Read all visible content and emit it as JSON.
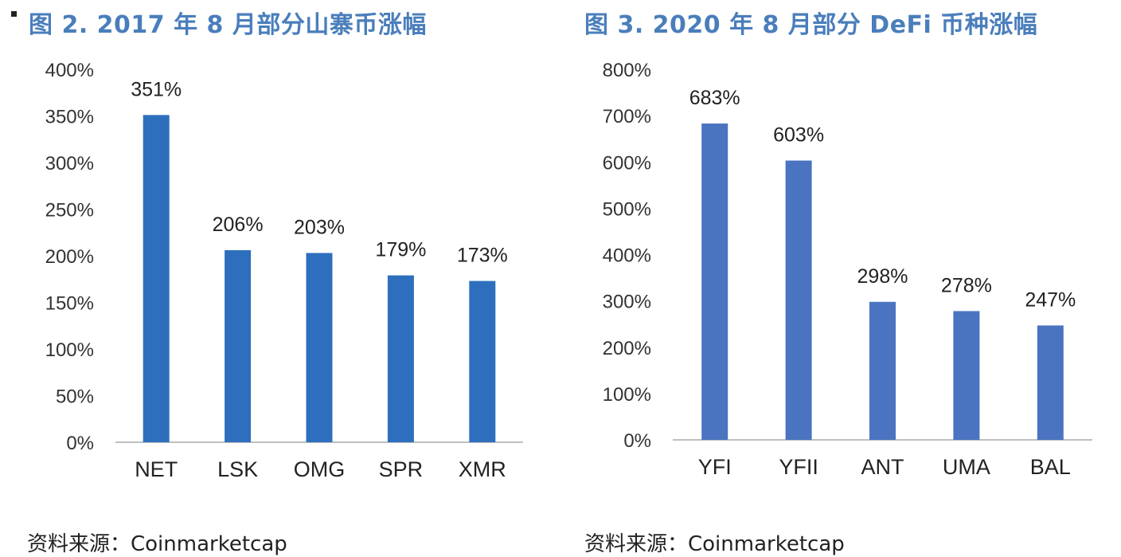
{
  "chart_data": [
    {
      "type": "bar",
      "title": "图 2.   2017 年 8 月部分山寨币涨幅",
      "categories": [
        "NET",
        "LSK",
        "OMG",
        "SPR",
        "XMR"
      ],
      "values": [
        351,
        206,
        203,
        179,
        173
      ],
      "data_labels": [
        "351%",
        "206%",
        "203%",
        "179%",
        "173%"
      ],
      "ylim": [
        0,
        400
      ],
      "yticks": [
        "0%",
        "50%",
        "100%",
        "150%",
        "200%",
        "250%",
        "300%",
        "350%",
        "400%"
      ],
      "xlabel": "",
      "ylabel": "",
      "grid": false,
      "bar_color": "#2e6fbd",
      "source": "资料来源：Coinmarketcap"
    },
    {
      "type": "bar",
      "title": "图 3. 2020 年 8 月部分 DeFi 币种涨幅",
      "categories": [
        "YFI",
        "YFII",
        "ANT",
        "UMA",
        "BAL"
      ],
      "values": [
        683,
        603,
        298,
        278,
        247
      ],
      "data_labels": [
        "683%",
        "603%",
        "298%",
        "278%",
        "247%"
      ],
      "ylim": [
        0,
        800
      ],
      "yticks": [
        "0%",
        "100%",
        "200%",
        "300%",
        "400%",
        "500%",
        "600%",
        "700%",
        "800%"
      ],
      "xlabel": "",
      "ylabel": "",
      "grid": false,
      "bar_color": "#4a74c0",
      "source": "资料来源：Coinmarketcap"
    }
  ]
}
